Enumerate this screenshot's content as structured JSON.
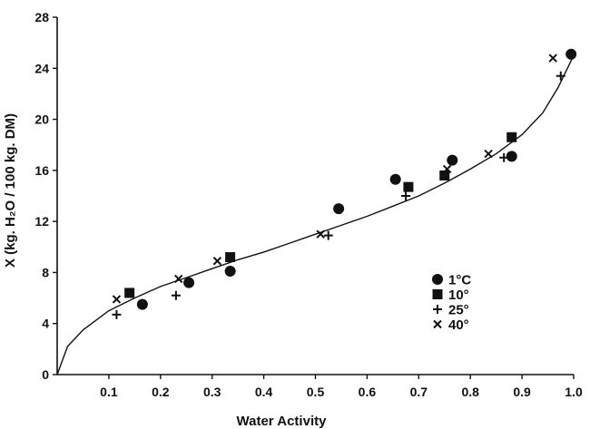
{
  "chart_data": {
    "type": "scatter",
    "title": "",
    "xlabel": "Water  Activity",
    "ylabel": "X (kg. H₂O / 100 kg. DM)",
    "xlim": [
      0,
      1.0
    ],
    "ylim": [
      0,
      28
    ],
    "x_ticks": [
      "0.1",
      "0.2",
      "0.3",
      "0.4",
      "0.5",
      "0.6",
      "0.7",
      "0.8",
      "0.9",
      "1.0"
    ],
    "y_ticks": [
      "0",
      "4",
      "8",
      "12",
      "16",
      "20",
      "24",
      "28"
    ],
    "grid": false,
    "legend_position": "right",
    "series": [
      {
        "name": "1°C",
        "marker": "circle",
        "points": [
          [
            0.165,
            5.5
          ],
          [
            0.255,
            7.2
          ],
          [
            0.335,
            8.1
          ],
          [
            0.545,
            13.0
          ],
          [
            0.655,
            15.3
          ],
          [
            0.765,
            16.8
          ],
          [
            0.88,
            17.1
          ],
          [
            0.995,
            25.1
          ]
        ]
      },
      {
        "name": "10°",
        "marker": "square",
        "points": [
          [
            0.14,
            6.4
          ],
          [
            0.335,
            9.2
          ],
          [
            0.68,
            14.7
          ],
          [
            0.75,
            15.6
          ],
          [
            0.88,
            18.6
          ]
        ]
      },
      {
        "name": "25°",
        "marker": "plus",
        "points": [
          [
            0.115,
            4.7
          ],
          [
            0.23,
            6.2
          ],
          [
            0.525,
            10.9
          ],
          [
            0.675,
            14.0
          ],
          [
            0.865,
            17.0
          ],
          [
            0.975,
            23.4
          ]
        ]
      },
      {
        "name": "40°",
        "marker": "cross",
        "points": [
          [
            0.115,
            5.9
          ],
          [
            0.235,
            7.5
          ],
          [
            0.31,
            8.9
          ],
          [
            0.51,
            11.0
          ],
          [
            0.755,
            16.1
          ],
          [
            0.835,
            17.3
          ],
          [
            0.96,
            24.8
          ]
        ]
      }
    ],
    "fitted_curve": [
      [
        0.0,
        0.0
      ],
      [
        0.02,
        2.2
      ],
      [
        0.05,
        3.5
      ],
      [
        0.1,
        5.0
      ],
      [
        0.15,
        6.0
      ],
      [
        0.2,
        6.9
      ],
      [
        0.25,
        7.6
      ],
      [
        0.3,
        8.3
      ],
      [
        0.35,
        9.0
      ],
      [
        0.4,
        9.6
      ],
      [
        0.45,
        10.3
      ],
      [
        0.5,
        11.0
      ],
      [
        0.55,
        11.7
      ],
      [
        0.6,
        12.4
      ],
      [
        0.65,
        13.2
      ],
      [
        0.7,
        14.0
      ],
      [
        0.75,
        15.0
      ],
      [
        0.8,
        16.1
      ],
      [
        0.85,
        17.3
      ],
      [
        0.9,
        18.8
      ],
      [
        0.94,
        20.5
      ],
      [
        0.97,
        22.5
      ],
      [
        1.0,
        25.0
      ]
    ]
  }
}
